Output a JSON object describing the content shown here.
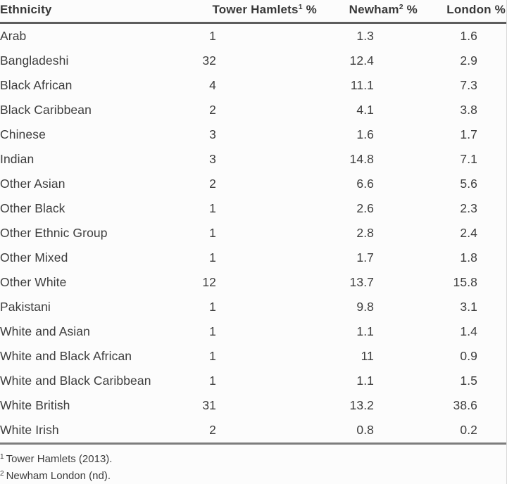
{
  "chart_data": {
    "type": "table",
    "columns": [
      {
        "label": "Ethnicity",
        "sup": "",
        "suffix": ""
      },
      {
        "label": "Tower Hamlets",
        "sup": "1",
        "suffix": " %"
      },
      {
        "label": "Newham",
        "sup": "2",
        "suffix": " %"
      },
      {
        "label": "London",
        "sup": "",
        "suffix": " %"
      }
    ],
    "rows": [
      [
        "Arab",
        "1",
        "1.3",
        "1.6"
      ],
      [
        "Bangladeshi",
        "32",
        "12.4",
        "2.9"
      ],
      [
        "Black African",
        "4",
        "11.1",
        "7.3"
      ],
      [
        "Black Caribbean",
        "2",
        "4.1",
        "3.8"
      ],
      [
        "Chinese",
        "3",
        "1.6",
        "1.7"
      ],
      [
        "Indian",
        "3",
        "14.8",
        "7.1"
      ],
      [
        "Other Asian",
        "2",
        "6.6",
        "5.6"
      ],
      [
        "Other Black",
        "1",
        "2.6",
        "2.3"
      ],
      [
        "Other Ethnic Group",
        "1",
        "2.8",
        "2.4"
      ],
      [
        "Other Mixed",
        "1",
        "1.7",
        "1.8"
      ],
      [
        "Other White",
        "12",
        "13.7",
        "15.8"
      ],
      [
        "Pakistani",
        "1",
        "9.8",
        "3.1"
      ],
      [
        "White and Asian",
        "1",
        "1.1",
        "1.4"
      ],
      [
        "White and Black African",
        "1",
        "11",
        "0.9"
      ],
      [
        "White and Black Caribbean",
        "1",
        "1.1",
        "1.5"
      ],
      [
        "White British",
        "31",
        "13.2",
        "38.6"
      ],
      [
        "White Irish",
        "2",
        "0.8",
        "0.2"
      ]
    ],
    "footnotes": [
      {
        "sup": "1",
        "text": "Tower Hamlets (2013)."
      },
      {
        "sup": "2",
        "text": "Newham London (nd)."
      }
    ]
  },
  "colors": {
    "text": "#3d3d3d",
    "header_rule": "#5d5d5d",
    "bottom_rule": "#7d7d7d",
    "background": "#fcfcfc"
  }
}
